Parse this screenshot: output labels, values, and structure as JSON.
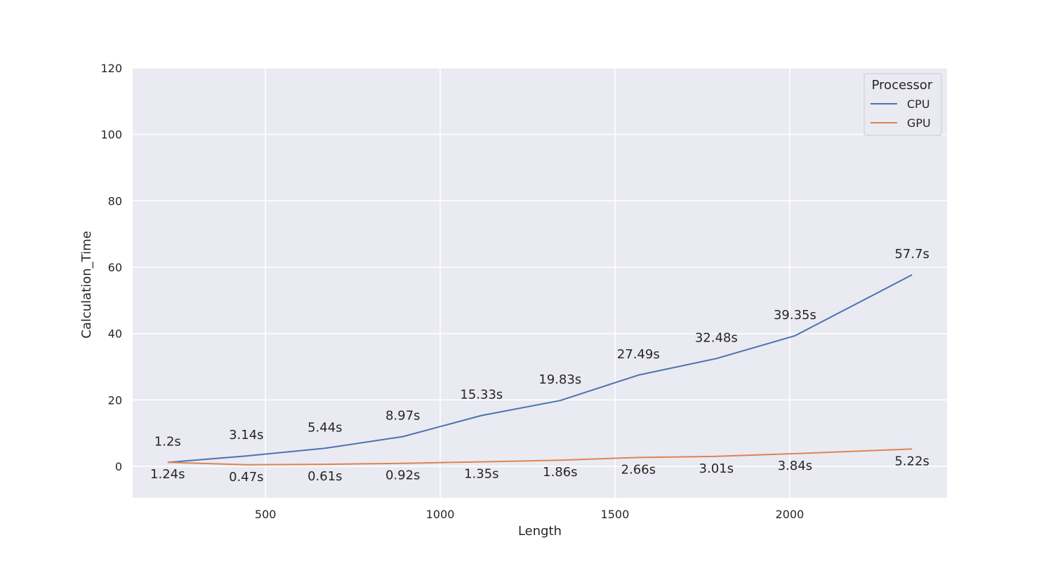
{
  "chart_data": {
    "type": "line",
    "xlabel": "Length",
    "ylabel": "Calculation_Time",
    "xlim": [
      120,
      2450
    ],
    "ylim": [
      -9.5,
      120
    ],
    "xticks": [
      500,
      1000,
      1500,
      2000
    ],
    "yticks": [
      0,
      20,
      40,
      60,
      80,
      100,
      120
    ],
    "grid": true,
    "legend": {
      "title": "Processor",
      "position": "top-right"
    },
    "x": [
      220,
      445,
      670,
      893,
      1118,
      1343,
      1567,
      1790,
      2015,
      2350
    ],
    "series": [
      {
        "name": "CPU",
        "color": "#4c72b0",
        "values": [
          1.2,
          3.14,
          5.44,
          8.97,
          15.33,
          19.83,
          27.49,
          32.48,
          39.35,
          57.7
        ],
        "labels": [
          "1.2s",
          "3.14s",
          "5.44s",
          "8.97s",
          "15.33s",
          "19.83s",
          "27.49s",
          "32.48s",
          "39.35s",
          "57.7s"
        ]
      },
      {
        "name": "GPU",
        "color": "#dd8452",
        "values": [
          1.24,
          0.47,
          0.61,
          0.92,
          1.35,
          1.86,
          2.66,
          3.01,
          3.84,
          5.22
        ],
        "labels": [
          "1.24s",
          "0.47s",
          "0.61s",
          "0.92s",
          "1.35s",
          "1.86s",
          "2.66s",
          "3.01s",
          "3.84s",
          "5.22s"
        ]
      }
    ],
    "plot_background": "#eaeaf2",
    "grid_color": "#ffffff",
    "text_color": "#262626"
  }
}
